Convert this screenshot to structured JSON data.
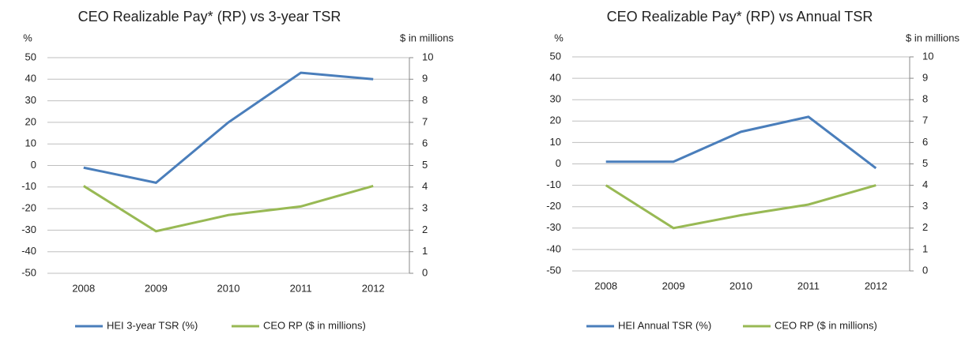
{
  "chart_data": [
    {
      "type": "line",
      "title": "CEO Realizable Pay* (RP) vs 3-year TSR",
      "ylabel": "%",
      "y2label": "$ in millions",
      "categories": [
        "2008",
        "2009",
        "2010",
        "2011",
        "2012"
      ],
      "series": [
        {
          "name": "HEI 3-year TSR (%)",
          "color": "#4a7ebb",
          "values": [
            -1,
            -8,
            20,
            43,
            40
          ]
        },
        {
          "name": "CEO RP ($ in millions)",
          "color": "#98b954",
          "axis": "y2",
          "values": [
            4.05,
            1.95,
            2.7,
            3.1,
            4.05
          ]
        }
      ],
      "ylim": [
        -50,
        50
      ],
      "yticks": [
        -50,
        -40,
        -30,
        -20,
        -10,
        0,
        10,
        20,
        30,
        40,
        50
      ],
      "y2lim": [
        0,
        10
      ],
      "y2ticks": [
        0,
        1,
        2,
        3,
        4,
        5,
        6,
        7,
        8,
        9,
        10
      ],
      "grid": true,
      "legend": "bottom"
    },
    {
      "type": "line",
      "title": "CEO Realizable Pay* (RP) vs Annual TSR",
      "ylabel": "%",
      "y2label": "$ in millions",
      "categories": [
        "2008",
        "2009",
        "2010",
        "2011",
        "2012"
      ],
      "series": [
        {
          "name": "HEI Annual TSR (%)",
          "color": "#4a7ebb",
          "values": [
            1,
            1,
            15,
            22,
            -2
          ]
        },
        {
          "name": "CEO RP ($ in millions)",
          "color": "#98b954",
          "axis": "y2",
          "values": [
            4.0,
            2.0,
            2.6,
            3.1,
            4.0
          ]
        }
      ],
      "ylim": [
        -50,
        50
      ],
      "yticks": [
        -50,
        -40,
        -30,
        -20,
        -10,
        0,
        10,
        20,
        30,
        40,
        50
      ],
      "y2lim": [
        0,
        10
      ],
      "y2ticks": [
        0,
        1,
        2,
        3,
        4,
        5,
        6,
        7,
        8,
        9,
        10
      ],
      "grid": true,
      "legend": "bottom"
    }
  ]
}
